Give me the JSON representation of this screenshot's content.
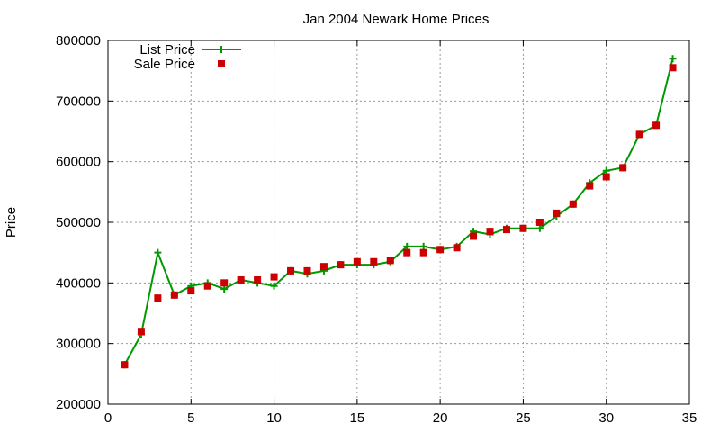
{
  "chart_data": {
    "type": "line",
    "title": "Jan 2004 Newark Home Prices",
    "xlabel": "",
    "ylabel": "Price",
    "xlim": [
      0,
      35
    ],
    "ylim": [
      200000,
      800000
    ],
    "x_ticks": [
      0,
      5,
      10,
      15,
      20,
      25,
      30,
      35
    ],
    "y_ticks": [
      200000,
      300000,
      400000,
      500000,
      600000,
      700000,
      800000
    ],
    "grid": true,
    "legend_position": "top-left",
    "series": [
      {
        "name": "List Price",
        "style": "line+plus",
        "color": "#009900",
        "x": [
          1,
          2,
          3,
          4,
          5,
          6,
          7,
          8,
          9,
          10,
          11,
          12,
          13,
          14,
          15,
          16,
          17,
          18,
          19,
          20,
          21,
          22,
          23,
          24,
          25,
          26,
          27,
          28,
          29,
          30,
          31,
          32,
          33,
          34
        ],
        "values": [
          265000,
          315000,
          450000,
          380000,
          395000,
          400000,
          390000,
          405000,
          400000,
          395000,
          420000,
          415000,
          420000,
          430000,
          430000,
          430000,
          435000,
          460000,
          460000,
          455000,
          460000,
          485000,
          480000,
          490000,
          490000,
          490000,
          510000,
          530000,
          565000,
          585000,
          590000,
          645000,
          660000,
          770000
        ]
      },
      {
        "name": "Sale Price",
        "style": "square",
        "color": "#cc0000",
        "x": [
          1,
          2,
          3,
          4,
          5,
          6,
          7,
          8,
          9,
          10,
          11,
          12,
          13,
          14,
          15,
          16,
          17,
          18,
          19,
          20,
          21,
          22,
          23,
          24,
          25,
          26,
          27,
          28,
          29,
          30,
          31,
          32,
          33,
          34
        ],
        "values": [
          265000,
          320000,
          375000,
          380000,
          387000,
          395000,
          400000,
          405000,
          405000,
          410000,
          420000,
          420000,
          427000,
          430000,
          435000,
          435000,
          437000,
          450000,
          450000,
          455000,
          458000,
          477000,
          485000,
          488000,
          490000,
          500000,
          515000,
          530000,
          560000,
          575000,
          590000,
          645000,
          660000,
          755000
        ]
      }
    ]
  }
}
